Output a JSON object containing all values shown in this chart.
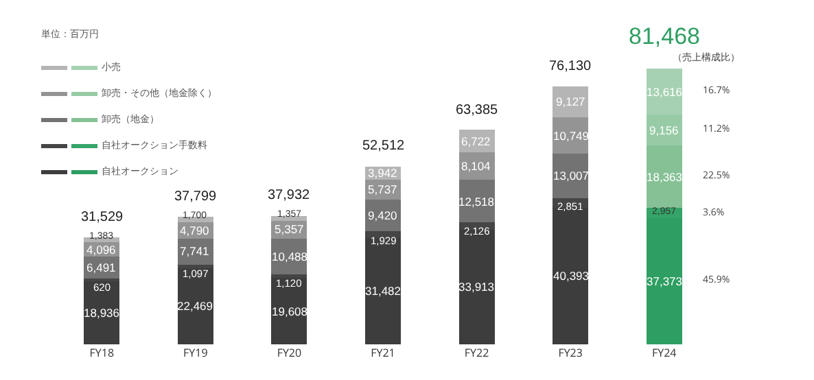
{
  "chart_data": {
    "type": "bar",
    "stacked": true,
    "legend": "top left",
    "categories": [
      "FY18",
      "FY19",
      "FY20",
      "FY21",
      "FY22",
      "FY23",
      "FY24"
    ],
    "series": [
      {
        "name": "自社オークション",
        "color": "#3d3d3d",
        "colors": [
          "#3d3d3d",
          "#3d3d3d",
          "#3d3d3d",
          "#3d3d3d",
          "#3d3d3d",
          "#3d3d3d",
          "#2e9e62"
        ],
        "values": [
          18936,
          22469,
          19608,
          31482,
          33913,
          40393,
          37373
        ],
        "value_labels": [
          "18,936",
          "22,469",
          "19,608",
          "31,482",
          "33,913",
          "40,393",
          "37,373"
        ]
      },
      {
        "name": "自社オークション手数料",
        "color": "#454545",
        "colors": [
          "#454545",
          "#454545",
          "#454545",
          "#454545",
          "#454545",
          "#454545",
          "#35a468"
        ],
        "values": [
          620,
          1097,
          1120,
          1929,
          2126,
          2851,
          2957
        ],
        "value_labels": [
          "620",
          "1,097",
          "1,120",
          "1,929",
          "2,126",
          "2,851",
          "2,957"
        ]
      },
      {
        "name": "卸売（地金）",
        "color": "#737373",
        "colors": [
          "#737373",
          "#737373",
          "#737373",
          "#737373",
          "#737373",
          "#737373",
          "#86c196"
        ],
        "values": [
          6491,
          7741,
          10488,
          9420,
          12518,
          13007,
          18363
        ],
        "value_labels": [
          "6,491",
          "7,741",
          "10,488",
          "9,420",
          "12,518",
          "13,007",
          "18,363"
        ]
      },
      {
        "name": "卸売・その他（地金除く）",
        "color": "#949494",
        "colors": [
          "#949494",
          "#949494",
          "#949494",
          "#949494",
          "#949494",
          "#949494",
          "#97cba6"
        ],
        "values": [
          4096,
          4790,
          5357,
          5737,
          8104,
          10749,
          9156
        ],
        "value_labels": [
          "4,096",
          "4,790",
          "5,357",
          "5,737",
          "8,104",
          "10,749",
          "9,156"
        ]
      },
      {
        "name": "小売",
        "color": "#b5b5b5",
        "colors": [
          "#b5b5b5",
          "#b5b5b5",
          "#b5b5b5",
          "#b5b5b5",
          "#b5b5b5",
          "#b5b5b5",
          "#a6d1b2"
        ],
        "values": [
          1383,
          1700,
          1357,
          3942,
          6722,
          9127,
          13616
        ],
        "value_labels": [
          "1,383",
          "1,700",
          "1,357",
          "3,942",
          "6,722",
          "9,127",
          "13,616"
        ]
      }
    ],
    "totals": [
      "31,529",
      "37,799",
      "37,932",
      "52,512",
      "63,385",
      "76,130",
      "81,468"
    ],
    "annotations": [
      "単位：百万円",
      "（売上構成比）",
      "45.9%",
      "3.6%",
      "22.5%",
      "11.2%",
      "16.7%"
    ]
  }
}
